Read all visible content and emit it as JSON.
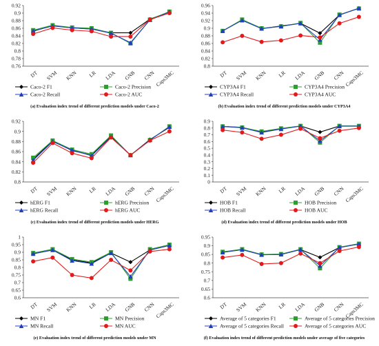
{
  "series_colors": {
    "F1": "#000000",
    "Precision": "#2ca02c",
    "Recall": "#1f3fbf",
    "AUC": "#e31a1c"
  },
  "chart_data": [
    {
      "type": "line",
      "caption": "(a) Evaluation index trend of different prediction models under Caco-2",
      "categories": [
        "DT",
        "SVM",
        "KNN",
        "LR",
        "LDA",
        "GNB",
        "CNN",
        "Caps3MC"
      ],
      "ylim": [
        0.76,
        0.92
      ],
      "yticks": [
        "0.92",
        "0.9",
        "0.88",
        "0.86",
        "0.84",
        "0.82",
        "0.8",
        "0.78",
        "0.76"
      ],
      "legend": "bottom",
      "series": [
        {
          "name": "Caco-2 F1",
          "key": "F1",
          "values": [
            0.852,
            0.867,
            0.861,
            0.858,
            0.848,
            0.848,
            0.884,
            0.903
          ]
        },
        {
          "name": "Caco-2 Precision",
          "key": "Precision",
          "values": [
            0.855,
            0.868,
            0.862,
            0.86,
            0.848,
            0.82,
            0.883,
            0.904
          ]
        },
        {
          "name": "Caco-2 Recall",
          "key": "Recall",
          "values": [
            0.853,
            0.866,
            0.861,
            0.858,
            0.847,
            0.822,
            0.882,
            0.903
          ]
        },
        {
          "name": "Caco-2 AUC",
          "key": "AUC",
          "values": [
            0.845,
            0.861,
            0.855,
            0.852,
            0.838,
            0.838,
            0.883,
            0.9
          ]
        }
      ]
    },
    {
      "type": "line",
      "caption": "(b) Evaluation index trend of different prediction models under CYP3A4",
      "categories": [
        "DT",
        "SVM",
        "KNN",
        "LR",
        "LDA",
        "GNB",
        "CNN",
        "Caps3MC"
      ],
      "ylim": [
        0.8,
        0.96
      ],
      "yticks": [
        "0.96",
        "0.94",
        "0.92",
        "0.9",
        "0.88",
        "0.86",
        "0.84",
        "0.82",
        "0.8"
      ],
      "legend": "bottom",
      "series": [
        {
          "name": "CYP3A4 F1",
          "key": "F1",
          "values": [
            0.893,
            0.922,
            0.899,
            0.906,
            0.913,
            0.887,
            0.935,
            0.953
          ]
        },
        {
          "name": "CYP3A4 Precision",
          "key": "Precision",
          "values": [
            0.893,
            0.923,
            0.9,
            0.905,
            0.914,
            0.862,
            0.936,
            0.952
          ]
        },
        {
          "name": "CYP3A4 Recall",
          "key": "Recall",
          "values": [
            0.893,
            0.921,
            0.899,
            0.905,
            0.913,
            0.87,
            0.935,
            0.953
          ]
        },
        {
          "name": "CYP3A4 AUC",
          "key": "AUC",
          "values": [
            0.863,
            0.88,
            0.864,
            0.868,
            0.881,
            0.876,
            0.913,
            0.93
          ]
        }
      ]
    },
    {
      "type": "line",
      "caption": "(c) Evaluation index trend of different prediction models under HERG",
      "categories": [
        "DT",
        "SVM",
        "KNN",
        "LR",
        "LDA",
        "GNB",
        "CNN",
        "Caps3MC"
      ],
      "ylim": [
        0.8,
        0.92
      ],
      "yticks": [
        "0.92",
        "0.9",
        "0.88",
        "0.86",
        "0.84",
        "0.82",
        "0.8"
      ],
      "legend": "bottom",
      "series": [
        {
          "name": "hERG F1",
          "key": "F1",
          "values": [
            0.845,
            0.881,
            0.862,
            0.853,
            0.89,
            0.853,
            0.884,
            0.908
          ]
        },
        {
          "name": "hERG Precision",
          "key": "Precision",
          "values": [
            0.848,
            0.882,
            0.864,
            0.855,
            0.892,
            0.853,
            0.883,
            0.91
          ]
        },
        {
          "name": "hERG Recall",
          "key": "Recall",
          "values": [
            0.843,
            0.88,
            0.863,
            0.852,
            0.889,
            0.853,
            0.883,
            0.909
          ]
        },
        {
          "name": "hERG AUC",
          "key": "AUC",
          "values": [
            0.838,
            0.877,
            0.857,
            0.847,
            0.888,
            0.853,
            0.882,
            0.9
          ]
        }
      ]
    },
    {
      "type": "line",
      "caption": "(d) Evaluation index trend of different prediction models under HOB",
      "categories": [
        "DT",
        "SVM",
        "KNN",
        "LR",
        "LDA",
        "GNB",
        "CNN",
        "Caps3MC"
      ],
      "ylim": [
        0,
        0.9
      ],
      "yticks": [
        "0.9",
        "0.8",
        "0.7",
        "0.6",
        "0.5",
        "0.4",
        "0.3",
        "0.2",
        "0.1",
        "0"
      ],
      "legend": "bottom",
      "series": [
        {
          "name": "HOB F1",
          "key": "F1",
          "values": [
            0.825,
            0.81,
            0.74,
            0.79,
            0.83,
            0.74,
            0.83,
            0.83
          ]
        },
        {
          "name": "HOB Precision",
          "key": "Precision",
          "values": [
            0.825,
            0.808,
            0.75,
            0.795,
            0.832,
            0.585,
            0.832,
            0.832
          ]
        },
        {
          "name": "HOB Recall",
          "key": "Recall",
          "values": [
            0.822,
            0.805,
            0.735,
            0.785,
            0.828,
            0.61,
            0.828,
            0.828
          ]
        },
        {
          "name": "HOB AUC",
          "key": "AUC",
          "values": [
            0.77,
            0.735,
            0.64,
            0.7,
            0.79,
            0.65,
            0.76,
            0.8
          ]
        }
      ]
    },
    {
      "type": "line",
      "caption": "(e) Evaluation index trend of different prediction models under MN",
      "categories": [
        "DT",
        "SVM",
        "KNN",
        "LR",
        "LDA",
        "GNB",
        "CNN",
        "Caps3MC"
      ],
      "ylim": [
        0.6,
        1
      ],
      "yticks": [
        "1",
        "0.95",
        "0.9",
        "0.85",
        "0.8",
        "0.75",
        "0.7",
        "0.65",
        "0.6"
      ],
      "legend": "bottom",
      "series": [
        {
          "name": "MN F1",
          "key": "F1",
          "values": [
            0.89,
            0.915,
            0.85,
            0.83,
            0.895,
            0.835,
            0.915,
            0.945
          ]
        },
        {
          "name": "MN Precision",
          "key": "Precision",
          "values": [
            0.895,
            0.92,
            0.855,
            0.835,
            0.9,
            0.725,
            0.92,
            0.95
          ]
        },
        {
          "name": "MN Recall",
          "key": "Recall",
          "values": [
            0.89,
            0.915,
            0.845,
            0.825,
            0.895,
            0.74,
            0.915,
            0.945
          ]
        },
        {
          "name": "MN AUC",
          "key": "AUC",
          "values": [
            0.84,
            0.865,
            0.75,
            0.73,
            0.85,
            0.78,
            0.905,
            0.92
          ]
        }
      ]
    },
    {
      "type": "line",
      "caption": "(f) Evaluation index trend of different prediction models under average of five categories",
      "categories": [
        "DT",
        "SVM",
        "KNN",
        "LR",
        "LDA",
        "GNB",
        "CNN",
        "Caps3MC"
      ],
      "ylim": [
        0.6,
        0.95
      ],
      "yticks": [
        "0.95",
        "0.9",
        "0.85",
        "0.8",
        "0.75",
        "0.7",
        "0.65",
        "0.6"
      ],
      "legend": "bottom",
      "series": [
        {
          "name": "Average of 5 categories F1",
          "key": "F1",
          "values": [
            0.862,
            0.878,
            0.848,
            0.85,
            0.878,
            0.833,
            0.89,
            0.91
          ]
        },
        {
          "name": "Average of 5 categories Precision",
          "key": "Precision",
          "values": [
            0.865,
            0.88,
            0.85,
            0.852,
            0.88,
            0.77,
            0.892,
            0.912
          ]
        },
        {
          "name": "Average of 5 categories Recall",
          "key": "Recall",
          "values": [
            0.862,
            0.877,
            0.848,
            0.85,
            0.878,
            0.785,
            0.89,
            0.91
          ]
        },
        {
          "name": "Average of 5 categories AUC",
          "key": "AUC",
          "values": [
            0.832,
            0.847,
            0.795,
            0.8,
            0.855,
            0.8,
            0.87,
            0.893
          ]
        }
      ]
    }
  ]
}
